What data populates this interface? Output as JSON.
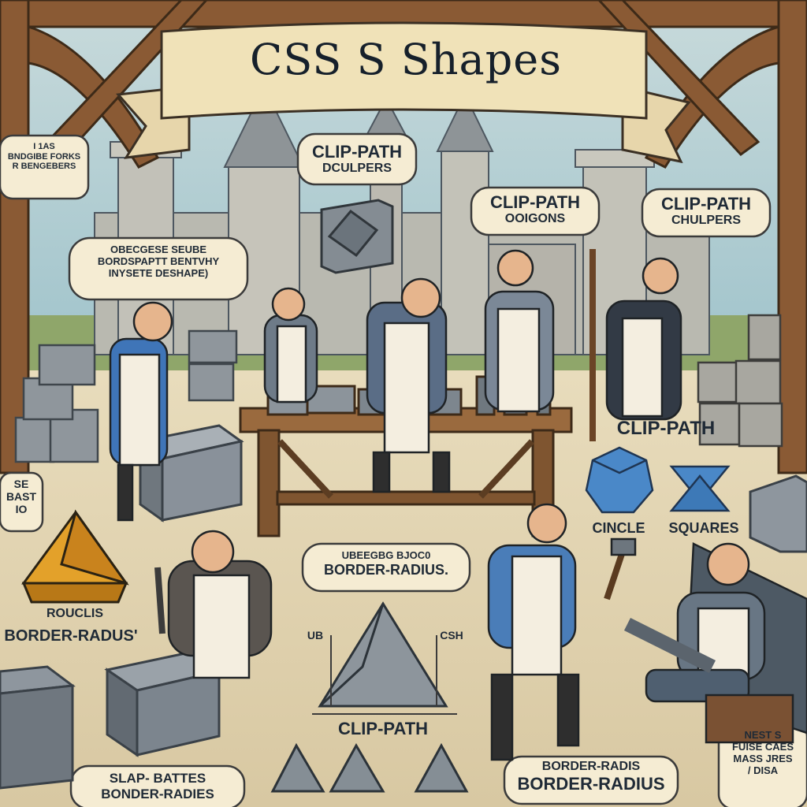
{
  "title": "CSS  S Shapes",
  "colors": {
    "sky": "#b9d3d6",
    "parchment": "#efe3c4",
    "stone": "#7f8a94",
    "wood": "#8a5a34",
    "blue_tunic": "#3f75b8",
    "orange_pyramid": "#e3a12a"
  },
  "labels": {
    "top_left": [
      "I 1AS",
      "BNDGIBE FORKS",
      "R BENGEBERS"
    ],
    "center_top": [
      "CLIP-PATH",
      "DCULPERS"
    ],
    "center_right": [
      "CLIP-PATH",
      "OOIGONS"
    ],
    "right_top": [
      "CLIP-PATH",
      "CHULPERS"
    ],
    "left_mid": [
      "OBECGESE SEUBE",
      "BORDSPAPTT BENTVHY",
      "INYSETE DESHAPE)"
    ],
    "right_shape_title": "CLIP-PATH",
    "circle_label": "CINCLE",
    "squares_label": "SQUARES",
    "left_edge": [
      "SE",
      "BAST",
      "IO"
    ],
    "bottom_left_small": "ROUCLIS",
    "bottom_left_big": "BORDER-RADUS'",
    "center_bottom": [
      "UBEEGBG BJOC0",
      "BORDER-RADIUS."
    ],
    "dim_left": "UB",
    "dim_right": "CSH",
    "clip_path_bottom": "CLIP-PATH",
    "bottom_left_bubble": [
      "SLAP- BATTES",
      "BONDER-RADIES"
    ],
    "bottom_center_bubble": [
      "BORDER-RADIS",
      "BORDER-RADIUS"
    ],
    "bottom_right_bubble": [
      "NEST S",
      "FUISE CAES",
      "MASS JRES",
      "/ DISA"
    ]
  }
}
